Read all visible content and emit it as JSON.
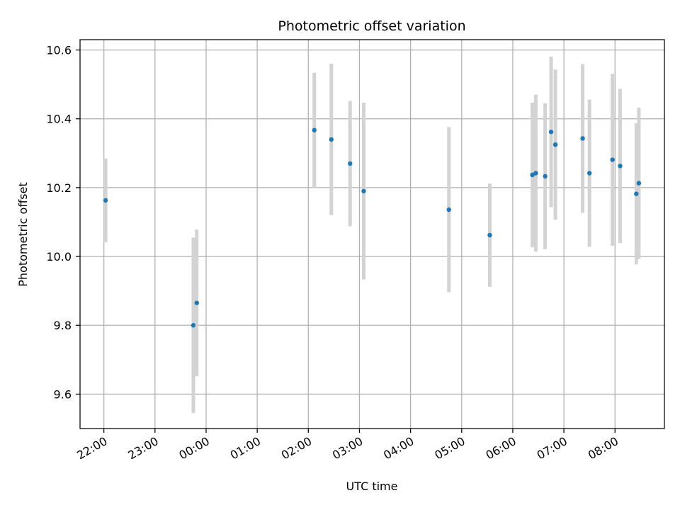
{
  "chart_data": {
    "type": "scatter",
    "title": "Photometric offset variation",
    "xlabel": "UTC time",
    "ylabel": "Photometric offset",
    "x_axis_kind": "time",
    "x_tick_labels": [
      "22:00",
      "23:00",
      "00:00",
      "01:00",
      "02:00",
      "03:00",
      "04:00",
      "05:00",
      "06:00",
      "07:00",
      "08:00"
    ],
    "y_ticks": [
      9.6,
      9.8,
      10.0,
      10.2,
      10.4,
      10.6
    ],
    "y_tick_labels": [
      "9.6",
      "9.8",
      "10.0",
      "10.2",
      "10.4",
      "10.6"
    ],
    "ylim": [
      9.5,
      10.63
    ],
    "xlim": [
      "21:32",
      "08:58"
    ],
    "grid": true,
    "colors": {
      "point": "#1f77b4",
      "errorbar": "#d3d3d3",
      "grid": "#b0b0b0"
    },
    "series": [
      {
        "points": [
          {
            "x": "22:02",
            "y": 10.163,
            "err": 0.122
          },
          {
            "x": "23:45",
            "y": 9.8,
            "err": 0.255
          },
          {
            "x": "23:49",
            "y": 9.865,
            "err": 0.213
          },
          {
            "x": "02:07",
            "y": 10.367,
            "err": 0.167
          },
          {
            "x": "02:27",
            "y": 10.34,
            "err": 0.22
          },
          {
            "x": "02:49",
            "y": 10.27,
            "err": 0.182
          },
          {
            "x": "03:05",
            "y": 10.19,
            "err": 0.257
          },
          {
            "x": "04:45",
            "y": 10.136,
            "err": 0.24
          },
          {
            "x": "05:33",
            "y": 10.062,
            "err": 0.15
          },
          {
            "x": "06:23",
            "y": 10.237,
            "err": 0.21
          },
          {
            "x": "06:27",
            "y": 10.242,
            "err": 0.228
          },
          {
            "x": "06:38",
            "y": 10.233,
            "err": 0.212
          },
          {
            "x": "06:45",
            "y": 10.362,
            "err": 0.219
          },
          {
            "x": "06:50",
            "y": 10.325,
            "err": 0.218
          },
          {
            "x": "07:22",
            "y": 10.343,
            "err": 0.216
          },
          {
            "x": "07:30",
            "y": 10.242,
            "err": 0.214
          },
          {
            "x": "07:57",
            "y": 10.281,
            "err": 0.25
          },
          {
            "x": "08:06",
            "y": 10.263,
            "err": 0.224
          },
          {
            "x": "08:25",
            "y": 10.182,
            "err": 0.205
          },
          {
            "x": "08:28",
            "y": 10.213,
            "err": 0.22
          }
        ]
      }
    ]
  }
}
